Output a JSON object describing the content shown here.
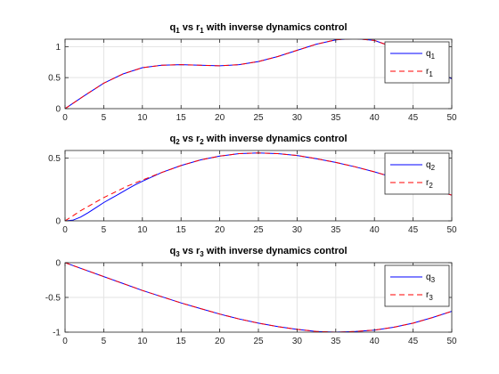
{
  "chart_data": [
    {
      "type": "line",
      "title": {
        "a": "q",
        "a_sub": "1",
        "mid": " vs r",
        "b_sub": "1",
        "rest": " with inverse dynamics control"
      },
      "xlim": [
        0,
        50
      ],
      "ylim": [
        0,
        1.12
      ],
      "xticks": [
        0,
        5,
        10,
        15,
        20,
        25,
        30,
        35,
        40,
        45,
        50
      ],
      "xtick_labels": [
        "0",
        "5",
        "10",
        "15",
        "20",
        "25",
        "30",
        "35",
        "40",
        "45",
        "50"
      ],
      "yticks": [
        0,
        0.5,
        1
      ],
      "ytick_labels": [
        "0",
        "0.5",
        "1"
      ],
      "grid": true,
      "legend_position": "top-right",
      "series": [
        {
          "name": "q",
          "sub": "1",
          "color": "#0000ff",
          "dash": "solid",
          "x": [
            0,
            2.5,
            5,
            7.5,
            10,
            12.5,
            15,
            17.5,
            20,
            22.5,
            25,
            27.5,
            30,
            32.5,
            35,
            37.5,
            40,
            42.5,
            45,
            47.5,
            50
          ],
          "y": [
            0,
            0.21,
            0.41,
            0.56,
            0.66,
            0.7,
            0.71,
            0.7,
            0.69,
            0.71,
            0.76,
            0.84,
            0.94,
            1.04,
            1.11,
            1.13,
            1.1,
            0.99,
            0.84,
            0.65,
            0.48
          ]
        },
        {
          "name": "r",
          "sub": "1",
          "color": "#ff0000",
          "dash": "dashed",
          "x": [
            0,
            2.5,
            5,
            7.5,
            10,
            12.5,
            15,
            17.5,
            20,
            22.5,
            25,
            27.5,
            30,
            32.5,
            35,
            37.5,
            40,
            42.5,
            45,
            47.5,
            50
          ],
          "y": [
            0,
            0.21,
            0.41,
            0.56,
            0.66,
            0.7,
            0.71,
            0.7,
            0.69,
            0.71,
            0.76,
            0.84,
            0.94,
            1.04,
            1.11,
            1.13,
            1.1,
            0.99,
            0.84,
            0.65,
            0.48
          ]
        }
      ]
    },
    {
      "type": "line",
      "title": {
        "a": "q",
        "a_sub": "2",
        "mid": " vs r",
        "b_sub": "2",
        "rest": " with inverse dynamics control"
      },
      "xlim": [
        0,
        50
      ],
      "ylim": [
        0,
        0.56
      ],
      "xticks": [
        0,
        5,
        10,
        15,
        20,
        25,
        30,
        35,
        40,
        45,
        50
      ],
      "xtick_labels": [
        "0",
        "5",
        "10",
        "15",
        "20",
        "25",
        "30",
        "35",
        "40",
        "45",
        "50"
      ],
      "yticks": [
        0,
        0.5
      ],
      "ytick_labels": [
        "0",
        "0.5"
      ],
      "grid": true,
      "legend_position": "top-right",
      "series": [
        {
          "name": "q",
          "sub": "2",
          "color": "#0000ff",
          "dash": "solid",
          "x": [
            0,
            1,
            2,
            3,
            4,
            5,
            6,
            7,
            8,
            9,
            10,
            12.5,
            15,
            17.5,
            20,
            22.5,
            25,
            27.5,
            30,
            32.5,
            35,
            37.5,
            40,
            42.5,
            45,
            47.5,
            50
          ],
          "y": [
            0,
            0.005,
            0.03,
            0.065,
            0.105,
            0.145,
            0.18,
            0.215,
            0.25,
            0.285,
            0.315,
            0.385,
            0.44,
            0.485,
            0.515,
            0.535,
            0.54,
            0.535,
            0.52,
            0.495,
            0.465,
            0.43,
            0.39,
            0.345,
            0.3,
            0.25,
            0.205
          ]
        },
        {
          "name": "r",
          "sub": "2",
          "color": "#ff0000",
          "dash": "dashed",
          "x": [
            0,
            1,
            2,
            3,
            4,
            5,
            6,
            7,
            8,
            9,
            10,
            12.5,
            15,
            17.5,
            20,
            22.5,
            25,
            27.5,
            30,
            32.5,
            35,
            37.5,
            40,
            42.5,
            45,
            47.5,
            50
          ],
          "y": [
            0,
            0.04,
            0.08,
            0.115,
            0.15,
            0.185,
            0.215,
            0.245,
            0.275,
            0.3,
            0.325,
            0.385,
            0.44,
            0.485,
            0.515,
            0.535,
            0.54,
            0.535,
            0.52,
            0.495,
            0.465,
            0.43,
            0.39,
            0.345,
            0.3,
            0.25,
            0.205
          ]
        }
      ]
    },
    {
      "type": "line",
      "title": {
        "a": "q",
        "a_sub": "3",
        "mid": " vs r",
        "b_sub": "3",
        "rest": " with inverse dynamics control"
      },
      "xlim": [
        0,
        50
      ],
      "ylim": [
        -1,
        0
      ],
      "xticks": [
        0,
        5,
        10,
        15,
        20,
        25,
        30,
        35,
        40,
        45,
        50
      ],
      "xtick_labels": [
        "0",
        "5",
        "10",
        "15",
        "20",
        "25",
        "30",
        "35",
        "40",
        "45",
        "50"
      ],
      "yticks": [
        -1,
        -0.5,
        0
      ],
      "ytick_labels": [
        "-1",
        "-0.5",
        "0"
      ],
      "grid": true,
      "legend_position": "top-right",
      "series": [
        {
          "name": "q",
          "sub": "3",
          "color": "#0000ff",
          "dash": "solid",
          "x": [
            0,
            2.5,
            5,
            7.5,
            10,
            12.5,
            15,
            17.5,
            20,
            22.5,
            25,
            27.5,
            30,
            32.5,
            35,
            37.5,
            40,
            42.5,
            45,
            47.5,
            50
          ],
          "y": [
            0,
            -0.1,
            -0.2,
            -0.3,
            -0.4,
            -0.49,
            -0.58,
            -0.66,
            -0.74,
            -0.81,
            -0.87,
            -0.92,
            -0.96,
            -0.99,
            -1.0,
            -0.99,
            -0.97,
            -0.93,
            -0.87,
            -0.79,
            -0.7
          ]
        },
        {
          "name": "r",
          "sub": "3",
          "color": "#ff0000",
          "dash": "dashed",
          "x": [
            0,
            2.5,
            5,
            7.5,
            10,
            12.5,
            15,
            17.5,
            20,
            22.5,
            25,
            27.5,
            30,
            32.5,
            35,
            37.5,
            40,
            42.5,
            45,
            47.5,
            50
          ],
          "y": [
            0,
            -0.1,
            -0.2,
            -0.3,
            -0.4,
            -0.49,
            -0.58,
            -0.66,
            -0.74,
            -0.81,
            -0.87,
            -0.92,
            -0.96,
            -0.99,
            -1.0,
            -0.99,
            -0.97,
            -0.93,
            -0.87,
            -0.79,
            -0.7
          ]
        }
      ]
    }
  ]
}
